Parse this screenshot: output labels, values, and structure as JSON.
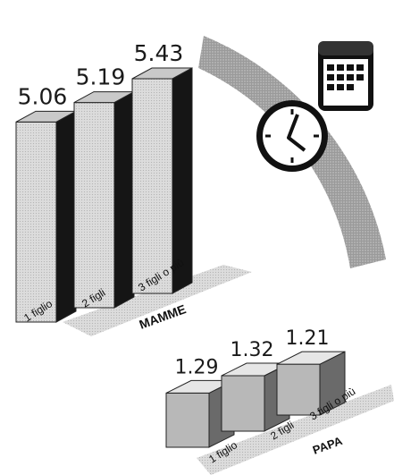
{
  "chart_data": [
    {
      "type": "bar",
      "title": "",
      "group_label": "MAMME",
      "categories": [
        "1 figlio",
        "2 figli",
        "3 figli o più"
      ],
      "values": [
        5.06,
        5.19,
        5.43
      ],
      "value_labels": [
        "5.06",
        "5.19",
        "5.43"
      ],
      "style": "3d",
      "colors": {
        "front": "#e4e4e4",
        "side": "#151515",
        "top": "#c9c9c9"
      }
    },
    {
      "type": "bar",
      "title": "",
      "group_label": "PAPA",
      "categories": [
        "1 figlio",
        "2 figli",
        "3 figli o più"
      ],
      "values": [
        1.29,
        1.32,
        1.21
      ],
      "value_labels": [
        "1.29",
        "1.32",
        "1.21"
      ],
      "style": "3d",
      "colors": {
        "front": "#b8b8b8",
        "side": "#6a6a6a",
        "top": "#e6e6e6"
      }
    }
  ],
  "decor": {
    "icons": [
      "clock-icon",
      "calendar-icon"
    ],
    "arc_color": "#8f8f8f"
  }
}
